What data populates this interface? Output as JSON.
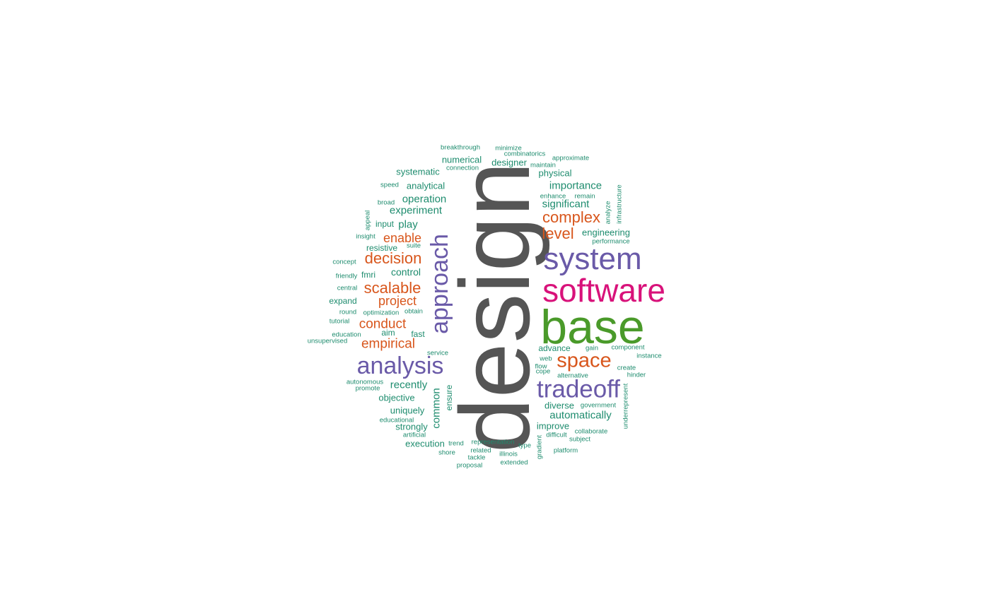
{
  "colors": {
    "gray": "#555555",
    "green": "#4a9a2a",
    "pink": "#d8127a",
    "purple": "#6a5aa8",
    "orange": "#d8561c",
    "teal": "#1e8c6e"
  },
  "words": [
    {
      "text": "design",
      "color": "gray"
    },
    {
      "text": "base",
      "color": "green"
    },
    {
      "text": "software",
      "color": "pink"
    },
    {
      "text": "system",
      "color": "purple"
    },
    {
      "text": "tradeoff",
      "color": "purple"
    },
    {
      "text": "analysis",
      "color": "purple"
    },
    {
      "text": "approach",
      "color": "purple"
    },
    {
      "text": "space",
      "color": "orange"
    },
    {
      "text": "complex",
      "color": "orange"
    },
    {
      "text": "level",
      "color": "orange"
    },
    {
      "text": "decision",
      "color": "orange"
    },
    {
      "text": "scalable",
      "color": "orange"
    },
    {
      "text": "empirical",
      "color": "orange"
    },
    {
      "text": "conduct",
      "color": "orange"
    },
    {
      "text": "project",
      "color": "orange"
    },
    {
      "text": "enable",
      "color": "orange"
    },
    {
      "text": "automatically",
      "color": "teal"
    },
    {
      "text": "importance",
      "color": "teal"
    },
    {
      "text": "significant",
      "color": "teal"
    },
    {
      "text": "operation",
      "color": "teal"
    },
    {
      "text": "experiment",
      "color": "teal"
    },
    {
      "text": "recently",
      "color": "teal"
    },
    {
      "text": "control",
      "color": "teal"
    },
    {
      "text": "common",
      "color": "teal"
    },
    {
      "text": "numerical",
      "color": "teal"
    },
    {
      "text": "designer",
      "color": "teal"
    },
    {
      "text": "systematic",
      "color": "teal"
    },
    {
      "text": "analytical",
      "color": "teal"
    },
    {
      "text": "physical",
      "color": "teal"
    },
    {
      "text": "engineering",
      "color": "teal"
    },
    {
      "text": "objective",
      "color": "teal"
    },
    {
      "text": "uniquely",
      "color": "teal"
    },
    {
      "text": "strongly",
      "color": "teal"
    },
    {
      "text": "execution",
      "color": "teal"
    },
    {
      "text": "diverse",
      "color": "teal"
    },
    {
      "text": "improve",
      "color": "teal"
    },
    {
      "text": "advance",
      "color": "teal"
    },
    {
      "text": "play",
      "color": "teal"
    },
    {
      "text": "input",
      "color": "teal"
    },
    {
      "text": "resistive",
      "color": "teal"
    },
    {
      "text": "fmri",
      "color": "teal"
    },
    {
      "text": "expand",
      "color": "teal"
    },
    {
      "text": "aim",
      "color": "teal"
    },
    {
      "text": "fast",
      "color": "teal"
    },
    {
      "text": "ensure",
      "color": "teal"
    },
    {
      "text": "breakthrough",
      "color": "teal"
    },
    {
      "text": "minimize",
      "color": "teal"
    },
    {
      "text": "combinatorics",
      "color": "teal"
    },
    {
      "text": "approximate",
      "color": "teal"
    },
    {
      "text": "maintain",
      "color": "teal"
    },
    {
      "text": "connection",
      "color": "teal"
    },
    {
      "text": "speed",
      "color": "teal"
    },
    {
      "text": "broad",
      "color": "teal"
    },
    {
      "text": "enhance",
      "color": "teal"
    },
    {
      "text": "remain",
      "color": "teal"
    },
    {
      "text": "infrastructure",
      "color": "teal"
    },
    {
      "text": "analyze",
      "color": "teal"
    },
    {
      "text": "appeal",
      "color": "teal"
    },
    {
      "text": "insight",
      "color": "teal"
    },
    {
      "text": "suite",
      "color": "teal"
    },
    {
      "text": "performance",
      "color": "teal"
    },
    {
      "text": "concept",
      "color": "teal"
    },
    {
      "text": "friendly",
      "color": "teal"
    },
    {
      "text": "central",
      "color": "teal"
    },
    {
      "text": "round",
      "color": "teal"
    },
    {
      "text": "optimization",
      "color": "teal"
    },
    {
      "text": "obtain",
      "color": "teal"
    },
    {
      "text": "tutorial",
      "color": "teal"
    },
    {
      "text": "education",
      "color": "teal"
    },
    {
      "text": "unsupervised",
      "color": "teal"
    },
    {
      "text": "service",
      "color": "teal"
    },
    {
      "text": "gain",
      "color": "teal"
    },
    {
      "text": "component",
      "color": "teal"
    },
    {
      "text": "instance",
      "color": "teal"
    },
    {
      "text": "web",
      "color": "teal"
    },
    {
      "text": "flow",
      "color": "teal"
    },
    {
      "text": "cope",
      "color": "teal"
    },
    {
      "text": "alternative",
      "color": "teal"
    },
    {
      "text": "create",
      "color": "teal"
    },
    {
      "text": "hinder",
      "color": "teal"
    },
    {
      "text": "autonomous",
      "color": "teal"
    },
    {
      "text": "promote",
      "color": "teal"
    },
    {
      "text": "government",
      "color": "teal"
    },
    {
      "text": "underrepresent",
      "color": "teal"
    },
    {
      "text": "educational",
      "color": "teal"
    },
    {
      "text": "artificial",
      "color": "teal"
    },
    {
      "text": "trend",
      "color": "teal"
    },
    {
      "text": "representation",
      "color": "teal"
    },
    {
      "text": "type",
      "color": "teal"
    },
    {
      "text": "gradient",
      "color": "teal"
    },
    {
      "text": "difficult",
      "color": "teal"
    },
    {
      "text": "collaborate",
      "color": "teal"
    },
    {
      "text": "subject",
      "color": "teal"
    },
    {
      "text": "shore",
      "color": "teal"
    },
    {
      "text": "related",
      "color": "teal"
    },
    {
      "text": "illinois",
      "color": "teal"
    },
    {
      "text": "platform",
      "color": "teal"
    },
    {
      "text": "tackle",
      "color": "teal"
    },
    {
      "text": "proposal",
      "color": "teal"
    },
    {
      "text": "extended",
      "color": "teal"
    }
  ]
}
